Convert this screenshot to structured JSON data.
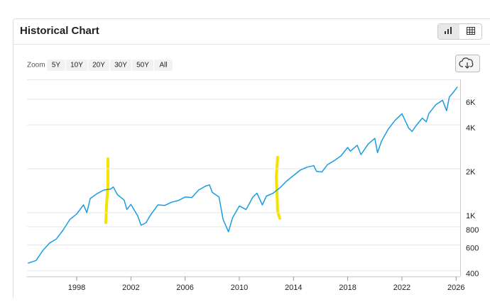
{
  "chart_data": {
    "type": "line",
    "title": "Historical Chart",
    "color": "#1a9de0",
    "log_scale": true,
    "grid": true,
    "x": [
      1994.4,
      1995.0,
      1995.5,
      1996.0,
      1996.5,
      1997.0,
      1997.5,
      1998.0,
      1998.5,
      1998.75,
      1999.0,
      1999.5,
      2000.0,
      2000.5,
      2000.7,
      2001.0,
      2001.5,
      2001.7,
      2002.0,
      2002.5,
      2002.75,
      2003.1,
      2003.5,
      2004.0,
      2004.5,
      2005.0,
      2005.5,
      2006.0,
      2006.5,
      2007.0,
      2007.5,
      2007.8,
      2008.0,
      2008.5,
      2008.8,
      2009.2,
      2009.5,
      2010.0,
      2010.5,
      2011.0,
      2011.3,
      2011.7,
      2012.0,
      2012.5,
      2013.0,
      2013.5,
      2014.0,
      2014.5,
      2015.0,
      2015.5,
      2015.7,
      2016.1,
      2016.5,
      2017.0,
      2017.5,
      2018.0,
      2018.2,
      2018.7,
      2018.98,
      2019.5,
      2020.0,
      2020.2,
      2020.5,
      2021.0,
      2021.5,
      2022.0,
      2022.5,
      2022.75,
      2023.0,
      2023.5,
      2023.8,
      2024.0,
      2024.5,
      2025.0,
      2025.3,
      2025.5,
      2025.8,
      2026.1
    ],
    "values": [
      450,
      470,
      550,
      620,
      660,
      760,
      900,
      980,
      1130,
      1000,
      1250,
      1350,
      1430,
      1450,
      1500,
      1330,
      1220,
      1050,
      1140,
      950,
      820,
      850,
      980,
      1130,
      1120,
      1180,
      1210,
      1280,
      1270,
      1430,
      1520,
      1550,
      1380,
      1280,
      900,
      740,
      920,
      1110,
      1050,
      1280,
      1360,
      1130,
      1300,
      1360,
      1480,
      1650,
      1800,
      1960,
      2050,
      2100,
      1920,
      1900,
      2130,
      2270,
      2450,
      2800,
      2640,
      2900,
      2500,
      2950,
      3230,
      2580,
      3100,
      3750,
      4300,
      4770,
      3800,
      3600,
      3900,
      4450,
      4200,
      4800,
      5500,
      5900,
      5000,
      6200,
      6700,
      7300
    ],
    "xlim": [
      1994.33,
      2026.3
    ],
    "xticks": [
      1998,
      2002,
      2006,
      2010,
      2014,
      2018,
      2022,
      2026
    ],
    "ylim": [
      365,
      8200
    ],
    "yticks": [
      400,
      600,
      800,
      {
        "value": 1000,
        "label": "1K"
      },
      {
        "value": 2000,
        "label": "2K"
      },
      {
        "value": 4000,
        "label": "4K"
      },
      {
        "value": 6000,
        "label": "6K"
      }
    ]
  },
  "toolbar": {
    "zoom_label": "Zoom",
    "zoom_options": [
      "5Y",
      "10Y",
      "20Y",
      "30Y",
      "50Y",
      "All"
    ]
  }
}
